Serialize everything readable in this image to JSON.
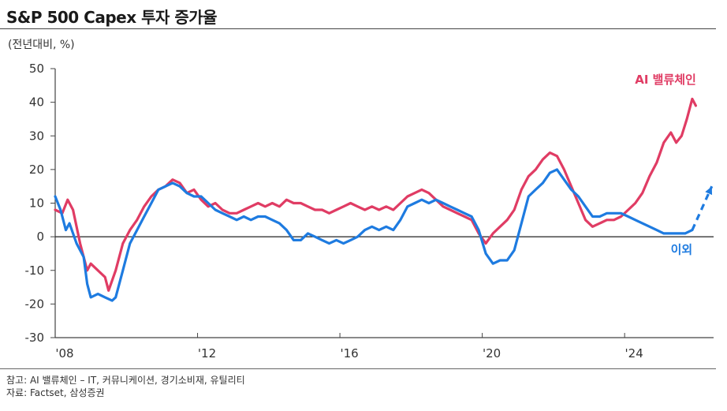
{
  "header": {
    "title": "S&P 500 Capex 투자 증가율"
  },
  "chart_data": {
    "type": "line",
    "unit_label": "(전년대비, %)",
    "ylim": [
      -30,
      50
    ],
    "yticks": [
      "50",
      "40",
      "30",
      "20",
      "10",
      "0",
      "-10",
      "-20",
      "-30"
    ],
    "xlim": [
      2008.0,
      2026.5
    ],
    "xticks": [
      {
        "x": 2008,
        "label": "'08"
      },
      {
        "x": 2012,
        "label": "'12"
      },
      {
        "x": 2016,
        "label": "'16"
      },
      {
        "x": 2020,
        "label": "'20"
      },
      {
        "x": 2024,
        "label": "'24"
      }
    ],
    "series": [
      {
        "name": "AI 밸류체인",
        "color": "#e03c64",
        "points": [
          [
            2008.0,
            8
          ],
          [
            2008.2,
            7
          ],
          [
            2008.35,
            11
          ],
          [
            2008.5,
            8
          ],
          [
            2008.7,
            -2
          ],
          [
            2008.9,
            -10
          ],
          [
            2009.0,
            -8
          ],
          [
            2009.2,
            -10
          ],
          [
            2009.4,
            -12
          ],
          [
            2009.5,
            -16
          ],
          [
            2009.7,
            -10
          ],
          [
            2009.9,
            -2
          ],
          [
            2010.1,
            2
          ],
          [
            2010.3,
            5
          ],
          [
            2010.5,
            9
          ],
          [
            2010.7,
            12
          ],
          [
            2010.9,
            14
          ],
          [
            2011.1,
            15
          ],
          [
            2011.3,
            17
          ],
          [
            2011.5,
            16
          ],
          [
            2011.7,
            13
          ],
          [
            2011.9,
            14
          ],
          [
            2012.1,
            11
          ],
          [
            2012.3,
            9
          ],
          [
            2012.5,
            10
          ],
          [
            2012.7,
            8
          ],
          [
            2012.9,
            7
          ],
          [
            2013.1,
            7
          ],
          [
            2013.3,
            8
          ],
          [
            2013.5,
            9
          ],
          [
            2013.7,
            10
          ],
          [
            2013.9,
            9
          ],
          [
            2014.1,
            10
          ],
          [
            2014.3,
            9
          ],
          [
            2014.5,
            11
          ],
          [
            2014.7,
            10
          ],
          [
            2014.9,
            10
          ],
          [
            2015.1,
            9
          ],
          [
            2015.3,
            8
          ],
          [
            2015.5,
            8
          ],
          [
            2015.7,
            7
          ],
          [
            2015.9,
            8
          ],
          [
            2016.1,
            9
          ],
          [
            2016.3,
            10
          ],
          [
            2016.5,
            9
          ],
          [
            2016.7,
            8
          ],
          [
            2016.9,
            9
          ],
          [
            2017.1,
            8
          ],
          [
            2017.3,
            9
          ],
          [
            2017.5,
            8
          ],
          [
            2017.7,
            10
          ],
          [
            2017.9,
            12
          ],
          [
            2018.1,
            13
          ],
          [
            2018.3,
            14
          ],
          [
            2018.5,
            13
          ],
          [
            2018.7,
            11
          ],
          [
            2018.9,
            9
          ],
          [
            2019.1,
            8
          ],
          [
            2019.3,
            7
          ],
          [
            2019.5,
            6
          ],
          [
            2019.7,
            5
          ],
          [
            2019.9,
            1
          ],
          [
            2020.1,
            -2
          ],
          [
            2020.3,
            1
          ],
          [
            2020.5,
            3
          ],
          [
            2020.7,
            5
          ],
          [
            2020.9,
            8
          ],
          [
            2021.1,
            14
          ],
          [
            2021.3,
            18
          ],
          [
            2021.5,
            20
          ],
          [
            2021.7,
            23
          ],
          [
            2021.9,
            25
          ],
          [
            2022.1,
            24
          ],
          [
            2022.3,
            20
          ],
          [
            2022.5,
            15
          ],
          [
            2022.7,
            10
          ],
          [
            2022.9,
            5
          ],
          [
            2023.1,
            3
          ],
          [
            2023.3,
            4
          ],
          [
            2023.5,
            5
          ],
          [
            2023.7,
            5
          ],
          [
            2023.9,
            6
          ],
          [
            2024.1,
            8
          ],
          [
            2024.3,
            10
          ],
          [
            2024.5,
            13
          ],
          [
            2024.7,
            18
          ],
          [
            2024.9,
            22
          ],
          [
            2025.1,
            28
          ],
          [
            2025.3,
            31
          ],
          [
            2025.45,
            28
          ],
          [
            2025.6,
            30
          ],
          [
            2025.75,
            35
          ],
          [
            2025.9,
            41
          ],
          [
            2026.0,
            39
          ]
        ]
      },
      {
        "name": "이외",
        "color": "#1e7be0",
        "points": [
          [
            2008.0,
            12
          ],
          [
            2008.15,
            8
          ],
          [
            2008.3,
            2
          ],
          [
            2008.4,
            4
          ],
          [
            2008.6,
            -2
          ],
          [
            2008.8,
            -6
          ],
          [
            2008.9,
            -14
          ],
          [
            2009.0,
            -18
          ],
          [
            2009.2,
            -17
          ],
          [
            2009.4,
            -18
          ],
          [
            2009.6,
            -19
          ],
          [
            2009.7,
            -18
          ],
          [
            2009.9,
            -10
          ],
          [
            2010.1,
            -2
          ],
          [
            2010.3,
            2
          ],
          [
            2010.5,
            6
          ],
          [
            2010.7,
            10
          ],
          [
            2010.9,
            14
          ],
          [
            2011.1,
            15
          ],
          [
            2011.3,
            16
          ],
          [
            2011.5,
            15
          ],
          [
            2011.7,
            13
          ],
          [
            2011.9,
            12
          ],
          [
            2012.1,
            12
          ],
          [
            2012.3,
            10
          ],
          [
            2012.5,
            8
          ],
          [
            2012.7,
            7
          ],
          [
            2012.9,
            6
          ],
          [
            2013.1,
            5
          ],
          [
            2013.3,
            6
          ],
          [
            2013.5,
            5
          ],
          [
            2013.7,
            6
          ],
          [
            2013.9,
            6
          ],
          [
            2014.1,
            5
          ],
          [
            2014.3,
            4
          ],
          [
            2014.5,
            2
          ],
          [
            2014.7,
            -1
          ],
          [
            2014.9,
            -1
          ],
          [
            2015.1,
            1
          ],
          [
            2015.3,
            0
          ],
          [
            2015.5,
            -1
          ],
          [
            2015.7,
            -2
          ],
          [
            2015.9,
            -1
          ],
          [
            2016.1,
            -2
          ],
          [
            2016.3,
            -1
          ],
          [
            2016.5,
            0
          ],
          [
            2016.7,
            2
          ],
          [
            2016.9,
            3
          ],
          [
            2017.1,
            2
          ],
          [
            2017.3,
            3
          ],
          [
            2017.5,
            2
          ],
          [
            2017.7,
            5
          ],
          [
            2017.9,
            9
          ],
          [
            2018.1,
            10
          ],
          [
            2018.3,
            11
          ],
          [
            2018.5,
            10
          ],
          [
            2018.7,
            11
          ],
          [
            2018.9,
            10
          ],
          [
            2019.1,
            9
          ],
          [
            2019.3,
            8
          ],
          [
            2019.5,
            7
          ],
          [
            2019.7,
            6
          ],
          [
            2019.9,
            2
          ],
          [
            2020.1,
            -5
          ],
          [
            2020.3,
            -8
          ],
          [
            2020.5,
            -7
          ],
          [
            2020.7,
            -7
          ],
          [
            2020.9,
            -4
          ],
          [
            2021.1,
            4
          ],
          [
            2021.3,
            12
          ],
          [
            2021.5,
            14
          ],
          [
            2021.7,
            16
          ],
          [
            2021.9,
            19
          ],
          [
            2022.1,
            20
          ],
          [
            2022.3,
            17
          ],
          [
            2022.5,
            14
          ],
          [
            2022.7,
            12
          ],
          [
            2022.9,
            9
          ],
          [
            2023.1,
            6
          ],
          [
            2023.3,
            6
          ],
          [
            2023.5,
            7
          ],
          [
            2023.7,
            7
          ],
          [
            2023.9,
            7
          ],
          [
            2024.1,
            6
          ],
          [
            2024.3,
            5
          ],
          [
            2024.5,
            4
          ],
          [
            2024.7,
            3
          ],
          [
            2024.9,
            2
          ],
          [
            2025.1,
            1
          ],
          [
            2025.3,
            1
          ],
          [
            2025.5,
            1
          ],
          [
            2025.7,
            1
          ],
          [
            2025.9,
            2
          ]
        ],
        "projection": [
          [
            2025.9,
            2
          ],
          [
            2026.45,
            15
          ]
        ]
      }
    ]
  },
  "notes": {
    "line1": "참고: AI 밸류체인 – IT, 커뮤니케이션, 경기소비재, 유틸리티",
    "line2": "자료: Factset, 삼성증권"
  }
}
